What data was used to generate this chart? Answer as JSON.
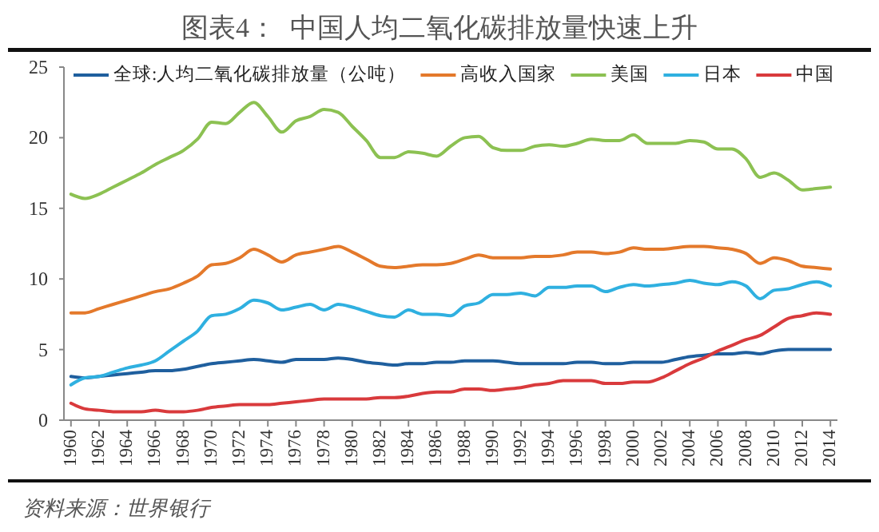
{
  "chart_data": {
    "type": "line",
    "title": "图表4：  中国人均二氧化碳排放量快速上升",
    "annotations": [
      "资料来源：世界银行"
    ],
    "x": [
      1960,
      1961,
      1962,
      1963,
      1964,
      1965,
      1966,
      1967,
      1968,
      1969,
      1970,
      1971,
      1972,
      1973,
      1974,
      1975,
      1976,
      1977,
      1978,
      1979,
      1980,
      1981,
      1982,
      1983,
      1984,
      1985,
      1986,
      1987,
      1988,
      1989,
      1990,
      1991,
      1992,
      1993,
      1994,
      1995,
      1996,
      1997,
      1998,
      1999,
      2000,
      2001,
      2002,
      2003,
      2004,
      2005,
      2006,
      2007,
      2008,
      2009,
      2010,
      2011,
      2012,
      2013,
      2014
    ],
    "xlim": [
      1959.5,
      2014.5
    ],
    "xticks": [
      1960,
      1962,
      1964,
      1966,
      1968,
      1970,
      1972,
      1974,
      1976,
      1978,
      1980,
      1982,
      1984,
      1986,
      1988,
      1990,
      1992,
      1994,
      1996,
      1998,
      2000,
      2002,
      2004,
      2006,
      2008,
      2010,
      2012,
      2014
    ],
    "ylim": [
      0,
      25
    ],
    "yticks": [
      0,
      5,
      10,
      15,
      20,
      25
    ],
    "legend": "top",
    "series": [
      {
        "name": "全球:人均二氧化碳排放量（公吨）",
        "color": "#1f5f9e",
        "values": [
          3.1,
          3.0,
          3.1,
          3.2,
          3.3,
          3.4,
          3.5,
          3.5,
          3.6,
          3.8,
          4.0,
          4.1,
          4.2,
          4.3,
          4.2,
          4.1,
          4.3,
          4.3,
          4.3,
          4.4,
          4.3,
          4.1,
          4.0,
          3.9,
          4.0,
          4.0,
          4.1,
          4.1,
          4.2,
          4.2,
          4.2,
          4.1,
          4.0,
          4.0,
          4.0,
          4.0,
          4.1,
          4.1,
          4.0,
          4.0,
          4.1,
          4.1,
          4.1,
          4.3,
          4.5,
          4.6,
          4.7,
          4.7,
          4.8,
          4.7,
          4.9,
          5.0,
          5.0,
          5.0,
          5.0
        ]
      },
      {
        "name": "高收入国家",
        "color": "#e4792b",
        "values": [
          7.6,
          7.6,
          7.9,
          8.2,
          8.5,
          8.8,
          9.1,
          9.3,
          9.7,
          10.2,
          11.0,
          11.1,
          11.5,
          12.1,
          11.7,
          11.2,
          11.7,
          11.9,
          12.1,
          12.3,
          11.9,
          11.4,
          10.9,
          10.8,
          10.9,
          11.0,
          11.0,
          11.1,
          11.4,
          11.7,
          11.5,
          11.5,
          11.5,
          11.6,
          11.6,
          11.7,
          11.9,
          11.9,
          11.8,
          11.9,
          12.2,
          12.1,
          12.1,
          12.2,
          12.3,
          12.3,
          12.2,
          12.1,
          11.8,
          11.1,
          11.5,
          11.3,
          10.9,
          10.8,
          10.7
        ]
      },
      {
        "name": "美国",
        "color": "#8cc152",
        "values": [
          16.0,
          15.7,
          16.0,
          16.5,
          17.0,
          17.5,
          18.1,
          18.6,
          19.1,
          19.9,
          21.1,
          21.0,
          21.8,
          22.5,
          21.5,
          20.4,
          21.2,
          21.5,
          22.0,
          21.8,
          20.8,
          19.8,
          18.6,
          18.6,
          19.0,
          18.9,
          18.7,
          19.4,
          20.0,
          20.1,
          19.3,
          19.1,
          19.1,
          19.4,
          19.5,
          19.4,
          19.6,
          19.9,
          19.8,
          19.8,
          20.2,
          19.6,
          19.6,
          19.6,
          19.8,
          19.7,
          19.2,
          19.2,
          18.5,
          17.2,
          17.5,
          17.0,
          16.3,
          16.4,
          16.5
        ]
      },
      {
        "name": "日本",
        "color": "#2fb0e0",
        "values": [
          2.5,
          3.0,
          3.1,
          3.4,
          3.7,
          3.9,
          4.2,
          4.9,
          5.6,
          6.3,
          7.4,
          7.5,
          7.9,
          8.5,
          8.3,
          7.8,
          8.0,
          8.2,
          7.8,
          8.2,
          8.0,
          7.7,
          7.4,
          7.3,
          7.8,
          7.5,
          7.5,
          7.4,
          8.1,
          8.3,
          8.9,
          8.9,
          9.0,
          8.8,
          9.4,
          9.4,
          9.5,
          9.5,
          9.1,
          9.4,
          9.6,
          9.5,
          9.6,
          9.7,
          9.9,
          9.7,
          9.6,
          9.8,
          9.5,
          8.6,
          9.2,
          9.3,
          9.6,
          9.8,
          9.5
        ]
      },
      {
        "name": "中国",
        "color": "#d93a3c",
        "values": [
          1.2,
          0.8,
          0.7,
          0.6,
          0.6,
          0.6,
          0.7,
          0.6,
          0.6,
          0.7,
          0.9,
          1.0,
          1.1,
          1.1,
          1.1,
          1.2,
          1.3,
          1.4,
          1.5,
          1.5,
          1.5,
          1.5,
          1.6,
          1.6,
          1.7,
          1.9,
          2.0,
          2.0,
          2.2,
          2.2,
          2.1,
          2.2,
          2.3,
          2.5,
          2.6,
          2.8,
          2.8,
          2.8,
          2.6,
          2.6,
          2.7,
          2.7,
          3.0,
          3.5,
          4.0,
          4.4,
          4.9,
          5.3,
          5.7,
          6.0,
          6.6,
          7.2,
          7.4,
          7.6,
          7.5
        ]
      }
    ]
  }
}
